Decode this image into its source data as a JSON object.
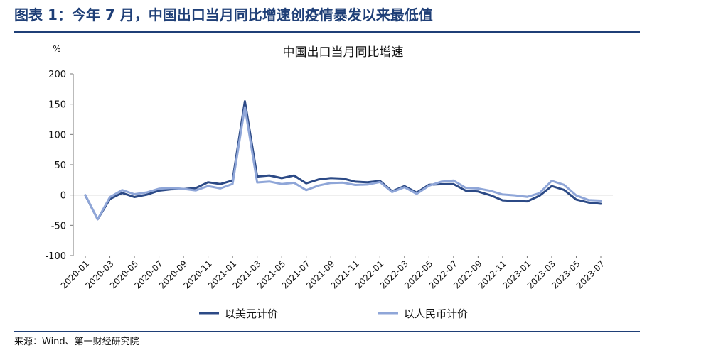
{
  "header": {
    "title": "图表 1：今年 7 月，中国出口当月同比增速创疫情暴发以来最低值"
  },
  "footer": {
    "source": "来源：Wind、第一财经研究院"
  },
  "chart_data": {
    "type": "line",
    "title": "中国出口当月同比增速",
    "ylabel": "%",
    "ylim": [
      -100,
      200
    ],
    "yticks": [
      -100,
      -50,
      0,
      50,
      100,
      150,
      200
    ],
    "x": [
      "2020-01",
      "2020-02",
      "2020-03",
      "2020-04",
      "2020-05",
      "2020-06",
      "2020-07",
      "2020-08",
      "2020-09",
      "2020-10",
      "2020-11",
      "2020-12",
      "2021-01",
      "2021-02",
      "2021-03",
      "2021-04",
      "2021-05",
      "2021-06",
      "2021-07",
      "2021-08",
      "2021-09",
      "2021-10",
      "2021-11",
      "2021-12",
      "2022-01",
      "2022-02",
      "2022-03",
      "2022-04",
      "2022-05",
      "2022-06",
      "2022-07",
      "2022-08",
      "2022-09",
      "2022-10",
      "2022-11",
      "2022-12",
      "2023-01",
      "2023-02",
      "2023-03",
      "2023-04",
      "2023-05",
      "2023-06",
      "2023-07"
    ],
    "xtick_labels": [
      "2020-01",
      "2020-03",
      "2020-05",
      "2020-07",
      "2020-09",
      "2020-11",
      "2021-01",
      "2021-03",
      "2021-05",
      "2021-07",
      "2021-09",
      "2021-11",
      "2022-01",
      "2022-03",
      "2022-05",
      "2022-07",
      "2022-09",
      "2022-11",
      "2023-01",
      "2023-03",
      "2023-05",
      "2023-07"
    ],
    "legend_position": "bottom",
    "grid": false,
    "series": [
      {
        "name": "以美元计价",
        "color": "#2c4a86",
        "values": [
          -0.5,
          -40,
          -6.6,
          3.5,
          -3.3,
          0.5,
          7.2,
          9.5,
          9.9,
          11.4,
          21.1,
          18.1,
          24,
          154.9,
          30.6,
          32.3,
          27.9,
          32.2,
          19.3,
          25.6,
          28.1,
          27.1,
          22,
          20.9,
          23.4,
          6.2,
          14.7,
          3.9,
          16.9,
          17.9,
          18,
          7.1,
          5.7,
          -0.3,
          -8.7,
          -9.9,
          -10.5,
          -1.3,
          14.8,
          8.5,
          -7.5,
          -12.4,
          -14.5
        ]
      },
      {
        "name": "以人民币计价",
        "color": "#8fa6d8",
        "values": [
          0,
          -40,
          -3.5,
          8.2,
          1.4,
          4.3,
          10.4,
          11.6,
          10.2,
          7.6,
          14.9,
          10.9,
          18.4,
          145,
          20.7,
          22.2,
          18.1,
          20.2,
          8.1,
          15.7,
          19.9,
          20.3,
          16.6,
          17.3,
          21.4,
          4.9,
          12.9,
          1.9,
          15.3,
          22,
          23.9,
          11.8,
          10.7,
          7,
          0.9,
          -0.5,
          -3.1,
          3,
          23.4,
          16.8,
          -0.8,
          -8.3,
          -9.2
        ]
      }
    ]
  }
}
